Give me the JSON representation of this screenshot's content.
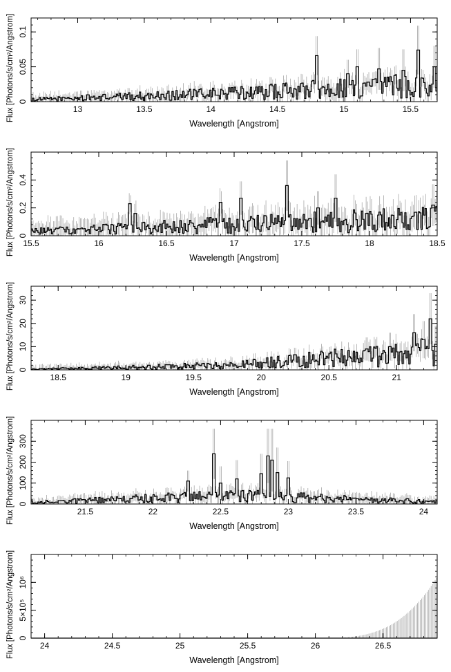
{
  "chart_data": [
    {
      "type": "histogram-step",
      "xlabel": "Wavelength [Angstrom]",
      "ylabel": "Flux [Photons/s/cm²/Angstrom]",
      "xlim": [
        12.65,
        15.7
      ],
      "ylim": [
        0,
        0.12
      ],
      "xticks": [
        13,
        13.5,
        14,
        14.5,
        15,
        15.5
      ],
      "xtick_labels": [
        "13",
        "13.5",
        "14",
        "14.5",
        "15",
        "15.5"
      ],
      "yticks": [
        0,
        0.05,
        0.1
      ],
      "ytick_labels": [
        "0",
        "0.05",
        "0.1"
      ],
      "peaks": [
        {
          "x": 14.8,
          "y": 0.066,
          "err": 0.028
        },
        {
          "x": 15.03,
          "y": 0.04,
          "err": 0.02
        },
        {
          "x": 15.1,
          "y": 0.05,
          "err": 0.025
        },
        {
          "x": 15.26,
          "y": 0.047,
          "err": 0.03
        },
        {
          "x": 15.45,
          "y": 0.045,
          "err": 0.03
        },
        {
          "x": 15.56,
          "y": 0.074,
          "err": 0.035
        },
        {
          "x": 15.68,
          "y": 0.05,
          "err": 0.03
        }
      ],
      "baseline": [
        0.003,
        0.012,
        0.025
      ],
      "errscale": 0.006
    },
    {
      "type": "histogram-step",
      "xlabel": "Wavelength [Angstrom]",
      "ylabel": "Flux [Photons/s/cm²/Angstrom]",
      "xlim": [
        15.5,
        18.5
      ],
      "ylim": [
        0,
        0.6
      ],
      "xticks": [
        15.5,
        16,
        16.5,
        17,
        17.5,
        18,
        18.5
      ],
      "xtick_labels": [
        "15.5",
        "16",
        "16.5",
        "17",
        "17.5",
        "18",
        "18.5"
      ],
      "yticks": [
        0,
        0.2,
        0.4
      ],
      "ytick_labels": [
        "0",
        "0.2",
        "0.4"
      ],
      "peaks": [
        {
          "x": 16.23,
          "y": 0.23,
          "err": 0.06
        },
        {
          "x": 16.27,
          "y": 0.16,
          "err": 0.05
        },
        {
          "x": 16.9,
          "y": 0.24,
          "err": 0.08
        },
        {
          "x": 17.05,
          "y": 0.27,
          "err": 0.12
        },
        {
          "x": 17.39,
          "y": 0.36,
          "err": 0.18
        },
        {
          "x": 17.62,
          "y": 0.2,
          "err": 0.12
        },
        {
          "x": 17.75,
          "y": 0.27,
          "err": 0.17
        },
        {
          "x": 18.47,
          "y": 0.22,
          "err": 0.15
        }
      ],
      "baseline": [
        0.03,
        0.08,
        0.12
      ],
      "errscale": 0.06
    },
    {
      "type": "histogram-step",
      "xlabel": "Wavelength [Angstrom]",
      "ylabel": "Flux [Photons/s/cm²/Angstrom]",
      "xlim": [
        18.3,
        21.3
      ],
      "ylim": [
        0,
        36
      ],
      "xticks": [
        18.5,
        19,
        19.5,
        20,
        20.5,
        21
      ],
      "xtick_labels": [
        "18.5",
        "19",
        "19.5",
        "20",
        "20.5",
        "21"
      ],
      "yticks": [
        0,
        10,
        20,
        30
      ],
      "ytick_labels": [
        "0",
        "10",
        "20",
        "30"
      ],
      "peaks": [
        {
          "x": 20.25,
          "y": 6.5,
          "err": 3
        },
        {
          "x": 20.78,
          "y": 9,
          "err": 5
        },
        {
          "x": 20.95,
          "y": 10,
          "err": 6
        },
        {
          "x": 21.13,
          "y": 16,
          "err": 8
        },
        {
          "x": 21.2,
          "y": 13,
          "err": 8
        },
        {
          "x": 21.25,
          "y": 22,
          "err": 11
        },
        {
          "x": 21.29,
          "y": 11,
          "err": 8
        }
      ],
      "baseline": [
        0.3,
        2,
        8
      ],
      "errscale": 1.5
    },
    {
      "type": "histogram-step",
      "xlabel": "Wavelength [Angstrom]",
      "ylabel": "Flux [Photons/s/cm²/Angstrom]",
      "xlim": [
        21.1,
        24.1
      ],
      "ylim": [
        0,
        400
      ],
      "xticks": [
        21.5,
        22,
        22.5,
        23,
        23.5,
        24
      ],
      "xtick_labels": [
        "21.5",
        "22",
        "22.5",
        "23",
        "23.5",
        "24"
      ],
      "yticks": [
        0,
        100,
        200,
        300
      ],
      "ytick_labels": [
        "0",
        "100",
        "200",
        "300"
      ],
      "peaks": [
        {
          "x": 22.26,
          "y": 110,
          "err": 50
        },
        {
          "x": 22.45,
          "y": 240,
          "err": 120
        },
        {
          "x": 22.5,
          "y": 100,
          "err": 80
        },
        {
          "x": 22.62,
          "y": 120,
          "err": 90
        },
        {
          "x": 22.8,
          "y": 145,
          "err": 95
        },
        {
          "x": 22.85,
          "y": 230,
          "err": 130
        },
        {
          "x": 22.88,
          "y": 210,
          "err": 150
        },
        {
          "x": 22.92,
          "y": 150,
          "err": 120
        },
        {
          "x": 23.0,
          "y": 125,
          "err": 80
        },
        {
          "x": 23.35,
          "y": 25,
          "err": 15
        }
      ],
      "baseline": [
        8,
        40,
        10
      ],
      "errscale": 20
    },
    {
      "type": "histogram-step",
      "xlabel": "Wavelength [Angstrom]",
      "ylabel": "Flux [Photons/s/cm²/Angstrom]",
      "xlim": [
        23.9,
        26.9
      ],
      "ylim": [
        0,
        1500000
      ],
      "xticks": [
        24,
        24.5,
        25,
        25.5,
        26,
        26.5
      ],
      "xtick_labels": [
        "24",
        "24.5",
        "25",
        "25.5",
        "26",
        "26.5"
      ],
      "yticks": [
        0,
        500000,
        1000000
      ],
      "ytick_labels": [
        "0",
        "5×10⁵",
        "10⁶"
      ],
      "peaks": [],
      "baseline": [
        0,
        0,
        0
      ],
      "errscale": 0,
      "rising_errors": {
        "start": 26.0,
        "end": 26.9,
        "max": 1100000
      }
    }
  ]
}
